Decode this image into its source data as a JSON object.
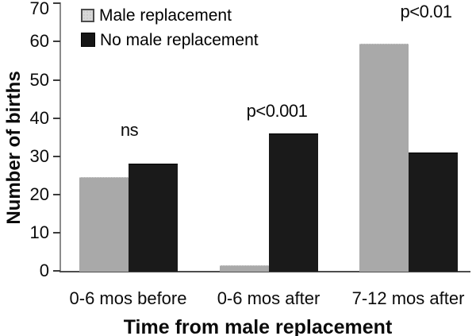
{
  "chart_data": {
    "type": "bar",
    "title": "",
    "categories": [
      "0-6 mos before",
      "0-6 mos after",
      "7-12 mos after"
    ],
    "series": [
      {
        "name": "Male replacement",
        "color": "#a9a9a9",
        "values": [
          24.5,
          1.5,
          59.5
        ]
      },
      {
        "name": "No male replacement",
        "color": "#1a1a1a",
        "values": [
          28,
          36,
          31
        ]
      }
    ],
    "annotations": [
      "ns",
      "p<0.001",
      "p<0.01"
    ],
    "xlabel": "Time from male replacement",
    "ylabel": "Number of births",
    "ylim": [
      0,
      70
    ],
    "yticks": [
      0,
      10,
      20,
      30,
      40,
      50,
      60,
      70
    ],
    "grid": false,
    "legend_position": "top-left",
    "axis_color": "#4d4d4d",
    "text_color": "#0b0b0b"
  }
}
